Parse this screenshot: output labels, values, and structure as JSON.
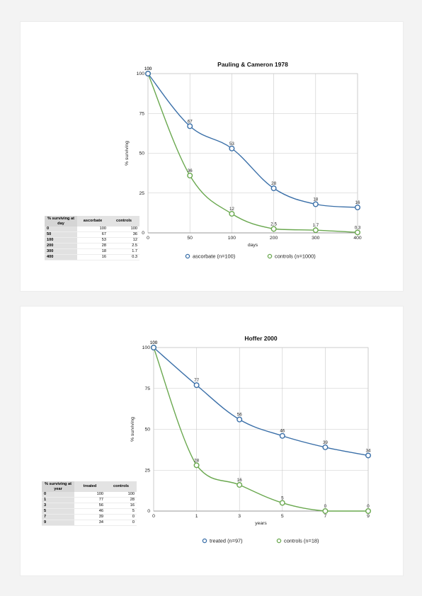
{
  "chart_data": [
    {
      "type": "line",
      "title": "Pauling & Cameron 1978",
      "xlabel": "days",
      "ylabel": "% surviving",
      "x": [
        0,
        50,
        100,
        200,
        300,
        400
      ],
      "xticks": [
        "0",
        "50",
        "100",
        "200",
        "300",
        "400"
      ],
      "yticks": [
        "0",
        "25",
        "50",
        "75",
        "100"
      ],
      "ylim": [
        0,
        100
      ],
      "grid": true,
      "legend_position": "bottom",
      "series": [
        {
          "name": "ascorbate (n=100)",
          "color": "#3a6fa8",
          "values": [
            100,
            67,
            53,
            28,
            18,
            16
          ],
          "labels": [
            "100",
            "67",
            "53",
            "28",
            "18",
            "16"
          ]
        },
        {
          "name": "controls (n=1000)",
          "color": "#6aa84f",
          "values": [
            100,
            36,
            12,
            2.5,
            1.7,
            0.3
          ],
          "labels": [
            "100",
            "36",
            "12",
            "2.5",
            "1.7",
            "0.3"
          ]
        }
      ],
      "table": {
        "header": [
          "% surviving at day",
          "ascorbate",
          "controls"
        ],
        "rows": [
          [
            "0",
            "100",
            "100"
          ],
          [
            "50",
            "67",
            "36"
          ],
          [
            "100",
            "53",
            "12"
          ],
          [
            "200",
            "28",
            "2.5"
          ],
          [
            "300",
            "18",
            "1.7"
          ],
          [
            "400",
            "16",
            "0.3"
          ]
        ]
      }
    },
    {
      "type": "line",
      "title": "Hoffer 2000",
      "xlabel": "years",
      "ylabel": "% surviving",
      "x": [
        0,
        1,
        3,
        5,
        7,
        9
      ],
      "xticks": [
        "0",
        "1",
        "3",
        "5",
        "7",
        "9"
      ],
      "yticks": [
        "0",
        "25",
        "50",
        "75",
        "100"
      ],
      "ylim": [
        0,
        100
      ],
      "grid": true,
      "legend_position": "bottom",
      "series": [
        {
          "name": "treated (n=97)",
          "color": "#3a6fa8",
          "values": [
            100,
            77,
            56,
            46,
            39,
            34
          ],
          "labels": [
            "100",
            "77",
            "56",
            "46",
            "39",
            "34"
          ]
        },
        {
          "name": "controls (n=18)",
          "color": "#6aa84f",
          "values": [
            100,
            28,
            16,
            5,
            0,
            0
          ],
          "labels": [
            "100",
            "28",
            "16",
            "5",
            "0",
            "0"
          ]
        }
      ],
      "table": {
        "header": [
          "% surviving at year",
          "treated",
          "controls"
        ],
        "rows": [
          [
            "0",
            "100",
            "100"
          ],
          [
            "1",
            "77",
            "28"
          ],
          [
            "3",
            "56",
            "16"
          ],
          [
            "5",
            "46",
            "5"
          ],
          [
            "7",
            "39",
            "0"
          ],
          [
            "9",
            "34",
            "0"
          ]
        ]
      }
    }
  ]
}
